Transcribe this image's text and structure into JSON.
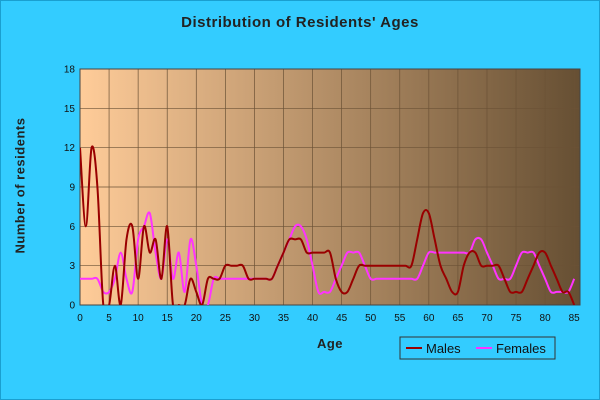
{
  "chart_data": {
    "type": "line",
    "title": "Distribution of Residents' Ages",
    "xlabel": "Age",
    "ylabel": "Number of residents",
    "xlim": [
      0,
      86
    ],
    "ylim": [
      0,
      18
    ],
    "xticks": [
      "0",
      "5",
      "10",
      "15",
      "20",
      "25",
      "30",
      "35",
      "40",
      "45",
      "50",
      "55",
      "60",
      "65",
      "70",
      "75",
      "80",
      "85"
    ],
    "yticks": [
      "0",
      "3",
      "6",
      "9",
      "12",
      "15",
      "18"
    ],
    "grid": true,
    "legend": "bottom-right",
    "colors": {
      "plot_bg_start": "#FFCC99",
      "plot_bg_end": "#664F33",
      "frame_bg": "#33CCFF",
      "males": "#990000",
      "females": "#FF33FF"
    },
    "series": [
      {
        "name": "Males",
        "color": "#990000",
        "x": [
          0,
          1,
          2,
          3,
          4,
          5,
          6,
          7,
          8,
          9,
          10,
          11,
          12,
          13,
          14,
          15,
          16,
          17,
          18,
          19,
          20,
          21,
          22,
          23,
          24,
          25,
          26,
          27,
          28,
          29,
          30,
          31,
          32,
          33,
          34,
          35,
          36,
          37,
          38,
          39,
          40,
          41,
          42,
          43,
          44,
          45,
          46,
          47,
          48,
          49,
          50,
          51,
          52,
          53,
          54,
          55,
          56,
          57,
          58,
          59,
          60,
          61,
          62,
          63,
          64,
          65,
          66,
          67,
          68,
          69,
          70,
          71,
          72,
          73,
          74,
          75,
          76,
          77,
          78,
          79,
          80,
          81,
          82,
          83,
          84,
          85
        ],
        "values": [
          12,
          6,
          12,
          9,
          0,
          0,
          3,
          0,
          5,
          6,
          2,
          6,
          4,
          5,
          2,
          6,
          0,
          0,
          0,
          2,
          1,
          0,
          2,
          2,
          2,
          3,
          3,
          3,
          3,
          2,
          2,
          2,
          2,
          2,
          3,
          4,
          5,
          5,
          5,
          4,
          4,
          4,
          4,
          4,
          2,
          1,
          1,
          2,
          3,
          3,
          3,
          3,
          3,
          3,
          3,
          3,
          3,
          3,
          5,
          7,
          7,
          5,
          3,
          2,
          1,
          1,
          3,
          4,
          4,
          3,
          3,
          3,
          3,
          2,
          1,
          1,
          1,
          2,
          3,
          4,
          4,
          3,
          2,
          1,
          1,
          0
        ]
      },
      {
        "name": "Females",
        "color": "#FF33FF",
        "x": [
          0,
          1,
          2,
          3,
          4,
          5,
          6,
          7,
          8,
          9,
          10,
          11,
          12,
          13,
          14,
          15,
          16,
          17,
          18,
          19,
          20,
          21,
          22,
          23,
          24,
          25,
          26,
          27,
          28,
          29,
          30,
          31,
          32,
          33,
          34,
          35,
          36,
          37,
          38,
          39,
          40,
          41,
          42,
          43,
          44,
          45,
          46,
          47,
          48,
          49,
          50,
          51,
          52,
          53,
          54,
          55,
          56,
          57,
          58,
          59,
          60,
          61,
          62,
          63,
          64,
          65,
          66,
          67,
          68,
          69,
          70,
          71,
          72,
          73,
          74,
          75,
          76,
          77,
          78,
          79,
          80,
          81,
          82,
          83,
          84,
          85
        ],
        "values": [
          2,
          2,
          2,
          2,
          1,
          1,
          2,
          4,
          2,
          1,
          5,
          6,
          7,
          4,
          2,
          5,
          2,
          4,
          1,
          5,
          3,
          0,
          0,
          2,
          2,
          2,
          2,
          2,
          2,
          2,
          2,
          2,
          2,
          2,
          3,
          4,
          5,
          6,
          6,
          5,
          3,
          1,
          1,
          1,
          2,
          3,
          4,
          4,
          4,
          3,
          2,
          2,
          2,
          2,
          2,
          2,
          2,
          2,
          2,
          3,
          4,
          4,
          4,
          4,
          4,
          4,
          4,
          4,
          5,
          5,
          4,
          3,
          2,
          2,
          2,
          3,
          4,
          4,
          4,
          3,
          2,
          1,
          1,
          1,
          1,
          2
        ]
      }
    ]
  }
}
